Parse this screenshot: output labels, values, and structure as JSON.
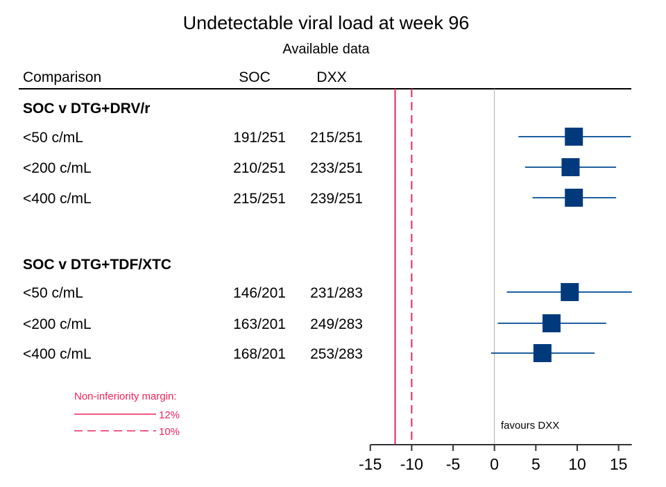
{
  "chart_data": {
    "type": "forest",
    "title": "Undetectable viral load at week 96",
    "subtitle": "Available data",
    "columns": [
      "Comparison",
      "SOC",
      "DXX"
    ],
    "groups": [
      {
        "label": "SOC v DTG+DRV/r",
        "rows": [
          {
            "label": "<50 c/mL",
            "soc": "191/251",
            "dxx": "215/251",
            "est": 9.6,
            "lo": 2.9,
            "hi": 16.5
          },
          {
            "label": "<200 c/mL",
            "soc": "210/251",
            "dxx": "233/251",
            "est": 9.2,
            "lo": 3.7,
            "hi": 14.7
          },
          {
            "label": "<400 c/mL",
            "soc": "215/251",
            "dxx": "239/251",
            "est": 9.6,
            "lo": 4.6,
            "hi": 14.7
          }
        ]
      },
      {
        "label": "SOC v DTG+TDF/XTC",
        "rows": [
          {
            "label": "<50 c/mL",
            "soc": "146/201",
            "dxx": "231/283",
            "est": 9.1,
            "lo": 1.5,
            "hi": 16.6
          },
          {
            "label": "<200 c/mL",
            "soc": "163/201",
            "dxx": "249/283",
            "est": 6.9,
            "lo": 0.4,
            "hi": 13.5
          },
          {
            "label": "<400 c/mL",
            "soc": "168/201",
            "dxx": "253/283",
            "est": 5.8,
            "lo": -0.4,
            "hi": 12.1
          }
        ]
      }
    ],
    "xlim": [
      -15,
      16.6
    ],
    "xticks": [
      -15,
      -10,
      -5,
      0,
      5,
      10,
      15
    ],
    "reference_line": 0,
    "margins": [
      {
        "value": -12,
        "label": "12%",
        "style": "solid"
      },
      {
        "value": -10,
        "label": "10%",
        "style": "dashed"
      }
    ],
    "legend_title": "Non-inferiority margin:",
    "annotation": "favours DXX",
    "colors": {
      "point": "#003A7D",
      "ci": "#1F5FA0",
      "margin": "#F0245A",
      "ref": "#AAAAAA",
      "axis": "#333333"
    }
  }
}
